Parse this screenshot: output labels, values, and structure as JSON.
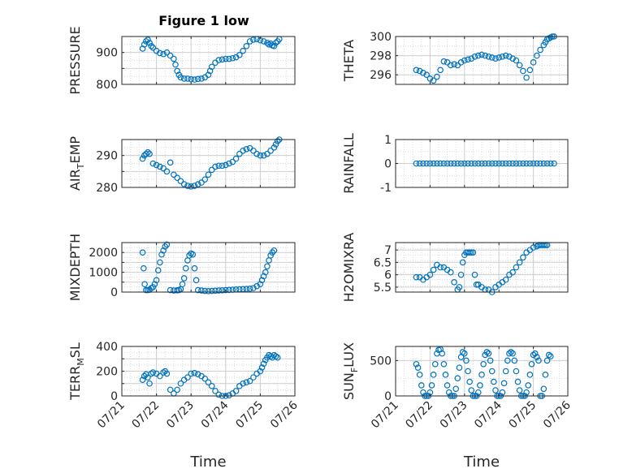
{
  "figure_title": "Figure 1 low",
  "x_axis_label": "Time",
  "colors": {
    "marker": "#0072BD",
    "grid": "#d9d9d9",
    "axis": "#262626"
  },
  "x_ticks": [
    "07/21",
    "07/22",
    "07/23",
    "07/24",
    "07/25",
    "07/26"
  ],
  "chart_data": [
    {
      "type": "scatter",
      "ylabel": "PRESSURE",
      "ylim": [
        800,
        950
      ],
      "yticks": [
        800,
        850,
        900
      ],
      "ytick_labels": [
        "800",
        "",
        "900"
      ],
      "grid": true,
      "x": [
        21.6,
        21.65,
        21.7,
        21.75,
        21.8,
        21.85,
        21.9,
        22.0,
        22.1,
        22.2,
        22.3,
        22.4,
        22.5,
        22.55,
        22.6,
        22.65,
        22.7,
        22.8,
        22.9,
        23.0,
        23.1,
        23.2,
        23.3,
        23.4,
        23.5,
        23.55,
        23.6,
        23.7,
        23.8,
        23.9,
        24.0,
        24.1,
        24.2,
        24.3,
        24.4,
        24.5,
        24.6,
        24.7,
        24.8,
        24.9,
        25.0,
        25.1,
        25.2,
        25.25,
        25.3,
        25.35,
        25.4,
        25.45,
        25.5,
        25.55
      ],
      "y": [
        912,
        925,
        935,
        940,
        930,
        920,
        915,
        905,
        898,
        895,
        900,
        890,
        880,
        862,
        842,
        830,
        822,
        818,
        818,
        816,
        815,
        817,
        818,
        822,
        830,
        842,
        855,
        868,
        876,
        878,
        880,
        880,
        882,
        885,
        892,
        905,
        920,
        935,
        940,
        942,
        938,
        935,
        930,
        925,
        928,
        922,
        920,
        930,
        935,
        942
      ]
    },
    {
      "type": "scatter",
      "ylabel": "THETA",
      "ylim": [
        295,
        300
      ],
      "yticks": [
        296,
        298,
        300
      ],
      "ytick_labels": [
        "296",
        "298",
        "300"
      ],
      "grid": true,
      "x": [
        21.6,
        21.7,
        21.8,
        21.9,
        22.0,
        22.1,
        22.2,
        22.3,
        22.4,
        22.5,
        22.6,
        22.7,
        22.8,
        22.9,
        23.0,
        23.1,
        23.2,
        23.3,
        23.4,
        23.5,
        23.6,
        23.7,
        23.8,
        23.9,
        24.0,
        24.1,
        24.2,
        24.3,
        24.4,
        24.5,
        24.6,
        24.7,
        24.8,
        24.9,
        25.0,
        25.1,
        25.2,
        25.3,
        25.35,
        25.4,
        25.45,
        25.5,
        25.55,
        25.6
      ],
      "y": [
        296.5,
        296.4,
        296.2,
        296.0,
        295.6,
        295.4,
        295.8,
        296.5,
        297.4,
        297.3,
        297.0,
        297.1,
        297.0,
        297.3,
        297.5,
        297.6,
        297.7,
        297.9,
        298.0,
        298.1,
        298.0,
        297.9,
        297.8,
        297.7,
        297.8,
        297.9,
        298.0,
        297.9,
        297.7,
        297.5,
        297.0,
        296.4,
        295.7,
        296.5,
        297.3,
        298.0,
        298.6,
        299.1,
        299.4,
        299.7,
        299.8,
        299.9,
        300.0,
        300.0
      ]
    },
    {
      "type": "scatter",
      "ylabel": "AIR_TEMP",
      "ylim": [
        280,
        295
      ],
      "yticks": [
        280,
        285,
        290
      ],
      "ytick_labels": [
        "280",
        "",
        "290"
      ],
      "grid": true,
      "x": [
        21.6,
        21.65,
        21.7,
        21.75,
        21.8,
        21.9,
        22.0,
        22.1,
        22.2,
        22.3,
        22.4,
        22.5,
        22.6,
        22.7,
        22.8,
        22.9,
        23.0,
        23.1,
        23.2,
        23.3,
        23.4,
        23.5,
        23.6,
        23.7,
        23.8,
        23.9,
        24.0,
        24.1,
        24.2,
        24.3,
        24.4,
        24.5,
        24.6,
        24.7,
        24.8,
        24.9,
        25.0,
        25.1,
        25.2,
        25.3,
        25.4,
        25.45,
        25.5,
        25.55
      ],
      "y": [
        289,
        290,
        290.5,
        291,
        290.5,
        287.5,
        287,
        286.5,
        286,
        285,
        287.8,
        284,
        283,
        282,
        281,
        280.5,
        280.3,
        280.5,
        281,
        281.5,
        282.5,
        284,
        285.5,
        286.5,
        286.8,
        286.8,
        287,
        287.5,
        288,
        289,
        290.5,
        291.5,
        292,
        292.3,
        291.5,
        290.5,
        290,
        290,
        290.5,
        291.5,
        292.5,
        293.5,
        294.5,
        295
      ]
    },
    {
      "type": "scatter",
      "ylabel": "RAINFALL",
      "ylim": [
        -1,
        1
      ],
      "yticks": [
        -1,
        0,
        1
      ],
      "ytick_labels": [
        "-1",
        "0",
        "1"
      ],
      "grid": true,
      "x": [
        21.6,
        21.7,
        21.8,
        21.9,
        22.0,
        22.1,
        22.2,
        22.3,
        22.4,
        22.5,
        22.6,
        22.7,
        22.8,
        22.9,
        23.0,
        23.1,
        23.2,
        23.3,
        23.4,
        23.5,
        23.6,
        23.7,
        23.8,
        23.9,
        24.0,
        24.1,
        24.2,
        24.3,
        24.4,
        24.5,
        24.6,
        24.7,
        24.8,
        24.9,
        25.0,
        25.1,
        25.2,
        25.3,
        25.4,
        25.5,
        25.6
      ],
      "y": [
        0,
        0,
        0,
        0,
        0,
        0,
        0,
        0,
        0,
        0,
        0,
        0,
        0,
        0,
        0,
        0,
        0,
        0,
        0,
        0,
        0,
        0,
        0,
        0,
        0,
        0,
        0,
        0,
        0,
        0,
        0,
        0,
        0,
        0,
        0,
        0,
        0,
        0,
        0,
        0,
        0
      ]
    },
    {
      "type": "scatter",
      "ylabel": "MIXDEPTH",
      "ylim": [
        0,
        2500
      ],
      "yticks": [
        0,
        500,
        1000,
        1500,
        2000
      ],
      "ytick_labels": [
        "0",
        "",
        "1000",
        "",
        "2000"
      ],
      "grid": true,
      "x": [
        21.6,
        21.63,
        21.66,
        21.7,
        21.75,
        21.8,
        21.85,
        21.9,
        21.95,
        22.0,
        22.05,
        22.1,
        22.15,
        22.2,
        22.25,
        22.3,
        22.4,
        22.5,
        22.6,
        22.65,
        22.7,
        22.75,
        22.8,
        22.85,
        22.9,
        22.95,
        23.0,
        23.05,
        23.1,
        23.15,
        23.2,
        23.3,
        23.4,
        23.5,
        23.6,
        23.7,
        23.8,
        23.9,
        24.0,
        24.1,
        24.2,
        24.3,
        24.4,
        24.5,
        24.6,
        24.7,
        24.8,
        24.9,
        25.0,
        25.05,
        25.1,
        25.15,
        25.2,
        25.25,
        25.3,
        25.35,
        25.4
      ],
      "y": [
        2000,
        1200,
        400,
        100,
        100,
        120,
        200,
        250,
        400,
        600,
        1100,
        1500,
        1900,
        2100,
        2300,
        2400,
        100,
        80,
        90,
        100,
        150,
        400,
        700,
        1200,
        1600,
        1850,
        1950,
        1900,
        1200,
        600,
        100,
        80,
        60,
        50,
        60,
        70,
        80,
        90,
        100,
        110,
        120,
        130,
        140,
        150,
        160,
        170,
        200,
        300,
        400,
        600,
        800,
        1000,
        1300,
        1600,
        1850,
        2000,
        2100
      ]
    },
    {
      "type": "scatter",
      "ylabel": "H2OMIXRA",
      "ylim": [
        5.3,
        7.3
      ],
      "yticks": [
        5.5,
        6,
        6.5,
        7
      ],
      "ytick_labels": [
        "5.5",
        "6",
        "6.5",
        "7"
      ],
      "grid": true,
      "x": [
        21.6,
        21.7,
        21.8,
        21.9,
        22.0,
        22.1,
        22.2,
        22.3,
        22.4,
        22.5,
        22.6,
        22.7,
        22.8,
        22.85,
        22.9,
        22.95,
        23.0,
        23.05,
        23.1,
        23.15,
        23.2,
        23.25,
        23.3,
        23.35,
        23.4,
        23.5,
        23.6,
        23.7,
        23.8,
        23.9,
        24.0,
        24.1,
        24.2,
        24.3,
        24.4,
        24.5,
        24.6,
        24.7,
        24.8,
        24.9,
        25.0,
        25.1,
        25.15,
        25.2,
        25.25,
        25.3,
        25.35,
        25.4
      ],
      "y": [
        5.9,
        5.9,
        5.8,
        5.9,
        6.0,
        6.2,
        6.4,
        6.3,
        6.3,
        6.2,
        6.1,
        5.7,
        5.4,
        5.5,
        6.0,
        6.5,
        6.8,
        6.9,
        6.9,
        6.9,
        6.9,
        6.9,
        6.0,
        5.6,
        5.6,
        5.5,
        5.4,
        5.4,
        5.3,
        5.5,
        5.6,
        5.7,
        5.8,
        6.0,
        6.1,
        6.3,
        6.5,
        6.7,
        6.9,
        7.0,
        7.1,
        7.15,
        7.2,
        7.2,
        7.2,
        7.2,
        7.2,
        7.2
      ]
    },
    {
      "type": "scatter",
      "ylabel": "TERR_MSL",
      "ylim": [
        0,
        400
      ],
      "yticks": [
        0,
        100,
        200,
        300,
        400
      ],
      "ytick_labels": [
        "0",
        "",
        "200",
        "",
        "400"
      ],
      "grid": true,
      "x": [
        21.6,
        21.65,
        21.7,
        21.75,
        21.8,
        21.85,
        21.9,
        22.0,
        22.1,
        22.2,
        22.25,
        22.3,
        22.4,
        22.5,
        22.6,
        22.7,
        22.8,
        22.9,
        23.0,
        23.1,
        23.2,
        23.3,
        23.4,
        23.5,
        23.6,
        23.7,
        23.8,
        23.9,
        24.0,
        24.1,
        24.2,
        24.3,
        24.4,
        24.5,
        24.6,
        24.7,
        24.8,
        24.9,
        25.0,
        25.05,
        25.1,
        25.15,
        25.2,
        25.25,
        25.3,
        25.35,
        25.4,
        25.45,
        25.5
      ],
      "y": [
        130,
        160,
        175,
        150,
        100,
        180,
        190,
        180,
        160,
        190,
        200,
        180,
        50,
        20,
        50,
        100,
        130,
        150,
        180,
        185,
        175,
        160,
        140,
        110,
        80,
        40,
        10,
        0,
        0,
        5,
        20,
        40,
        80,
        100,
        110,
        120,
        150,
        180,
        200,
        230,
        260,
        290,
        310,
        330,
        320,
        310,
        330,
        320,
        310
      ]
    },
    {
      "type": "scatter",
      "ylabel": "SUN_FLUX",
      "ylim": [
        0,
        700
      ],
      "yticks": [
        0,
        500
      ],
      "ytick_labels": [
        "0",
        "500"
      ],
      "grid": true,
      "x": [
        21.6,
        21.65,
        21.7,
        21.75,
        21.8,
        21.85,
        21.9,
        21.95,
        22.0,
        22.05,
        22.1,
        22.15,
        22.2,
        22.25,
        22.3,
        22.35,
        22.4,
        22.45,
        22.5,
        22.55,
        22.6,
        22.65,
        22.7,
        22.75,
        22.8,
        22.85,
        22.9,
        22.95,
        23.0,
        23.05,
        23.1,
        23.15,
        23.2,
        23.25,
        23.3,
        23.35,
        23.4,
        23.45,
        23.5,
        23.55,
        23.6,
        23.65,
        23.7,
        23.75,
        23.8,
        23.85,
        23.9,
        23.95,
        24.0,
        24.05,
        24.1,
        24.15,
        24.2,
        24.25,
        24.3,
        24.35,
        24.4,
        24.45,
        24.5,
        24.55,
        24.6,
        24.65,
        24.7,
        24.75,
        24.8,
        24.85,
        24.9,
        24.95,
        25.0,
        25.05,
        25.1,
        25.15,
        25.2,
        25.25,
        25.3,
        25.35,
        25.4,
        25.45,
        25.5
      ],
      "y": [
        450,
        400,
        300,
        150,
        50,
        0,
        0,
        0,
        50,
        150,
        300,
        450,
        600,
        650,
        660,
        600,
        450,
        300,
        150,
        50,
        0,
        0,
        0,
        100,
        250,
        400,
        550,
        620,
        600,
        500,
        350,
        200,
        80,
        0,
        0,
        0,
        50,
        150,
        300,
        450,
        580,
        620,
        600,
        500,
        350,
        200,
        80,
        0,
        0,
        0,
        50,
        180,
        350,
        500,
        600,
        620,
        600,
        500,
        350,
        200,
        80,
        0,
        0,
        0,
        50,
        150,
        300,
        450,
        580,
        600,
        550,
        500,
        0,
        0,
        100,
        300,
        500,
        580,
        560
      ]
    }
  ]
}
